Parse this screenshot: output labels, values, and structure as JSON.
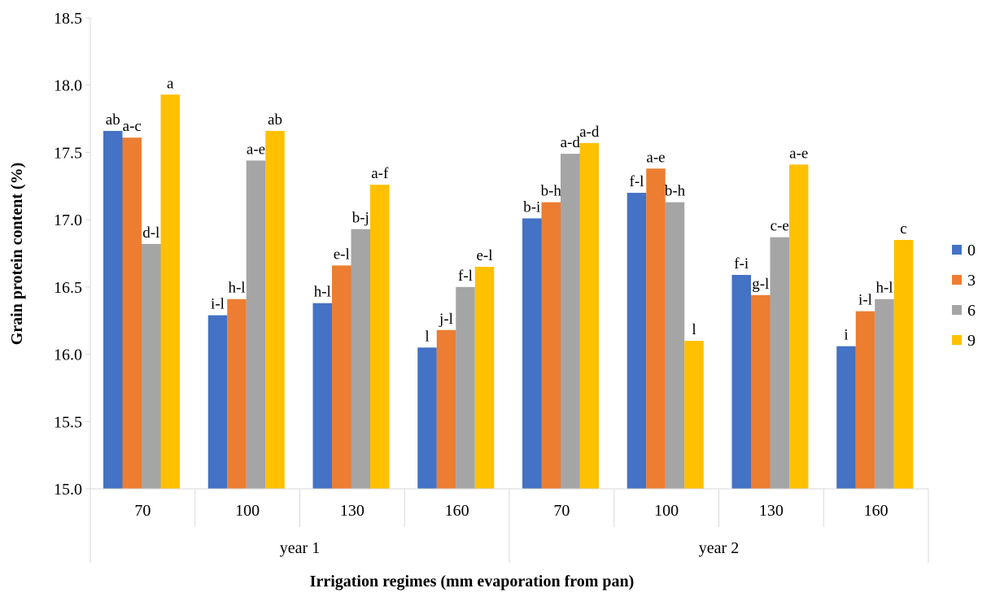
{
  "chart_data": {
    "type": "bar",
    "title": "",
    "xlabel": "Irrigation regimes (mm evaporation from pan)",
    "ylabel": "Grain protein content (%)",
    "ylim": [
      15.0,
      18.5
    ],
    "yticks": [
      "15.0",
      "15.5",
      "16.0",
      "16.5",
      "17.0",
      "17.5",
      "18.0",
      "18.5"
    ],
    "grid": false,
    "legend_position": "right",
    "groups": [
      "year 1",
      "year 2"
    ],
    "categories": [
      "70",
      "100",
      "130",
      "160",
      "70",
      "100",
      "130",
      "160"
    ],
    "category_group": [
      0,
      0,
      0,
      0,
      1,
      1,
      1,
      1
    ],
    "series": [
      {
        "name": "0",
        "color": "#4472C4",
        "values": [
          17.66,
          16.29,
          16.38,
          16.05,
          17.01,
          17.2,
          16.59,
          16.06
        ],
        "labels": [
          "ab",
          "i-l",
          "h-l",
          "l",
          "b-i",
          "f-l",
          "f-i",
          "i"
        ]
      },
      {
        "name": "3",
        "color": "#ED7D31",
        "values": [
          17.61,
          16.41,
          16.66,
          16.18,
          17.13,
          17.38,
          16.44,
          16.32
        ],
        "labels": [
          "a-c",
          "h-l",
          "e-l",
          "j-l",
          "b-h",
          "a-e",
          "g-l",
          "i-l"
        ]
      },
      {
        "name": "6",
        "color": "#A5A5A5",
        "values": [
          16.82,
          17.44,
          16.93,
          16.5,
          17.49,
          17.13,
          16.87,
          16.41
        ],
        "labels": [
          "d-l",
          "a-e",
          "b-j",
          "f-l",
          "a-d",
          "b-h",
          "c-e",
          "h-l"
        ]
      },
      {
        "name": "9",
        "color": "#FFC000",
        "values": [
          17.93,
          17.66,
          17.26,
          16.65,
          17.57,
          16.1,
          17.41,
          16.85
        ],
        "labels": [
          "a",
          "ab",
          "a-f",
          "e-l",
          "a-d",
          "l",
          "a-e",
          "c"
        ]
      }
    ]
  }
}
